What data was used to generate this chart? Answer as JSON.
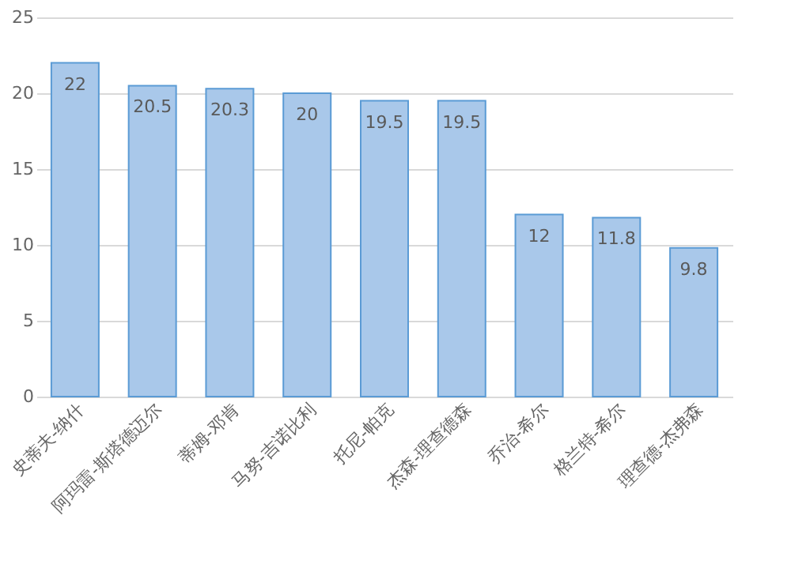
{
  "chart_data": {
    "type": "bar",
    "categories": [
      "史蒂夫-纳什",
      "阿玛雷-斯塔德迈尔",
      "蒂姆-邓肯",
      "马努-吉诺比利",
      "托尼-帕克",
      "杰森-理查德森",
      "乔治-希尔",
      "格兰特-希尔",
      "理查德-杰弗森"
    ],
    "values": [
      22,
      20.5,
      20.3,
      20,
      19.5,
      19.5,
      12,
      11.8,
      9.8
    ],
    "color": "#a9c8ea",
    "ylim": [
      0,
      25
    ],
    "yticks": [
      0,
      5,
      10,
      15,
      20,
      25
    ],
    "grid": "y",
    "data_labels": true
  }
}
